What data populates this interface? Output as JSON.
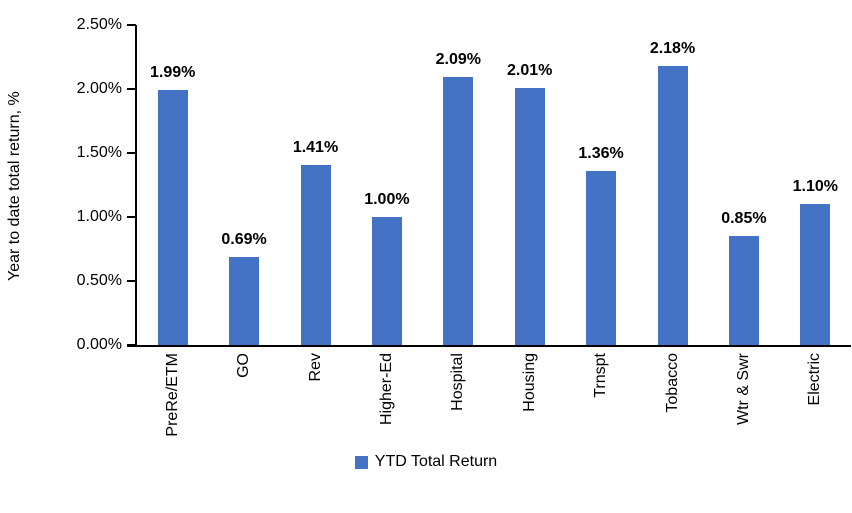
{
  "chart_data": {
    "type": "bar",
    "categories": [
      "PreRe/ETM",
      "GO",
      "Rev",
      "Higher-Ed",
      "Hospital",
      "Housing",
      "Trnspt",
      "Tobacco",
      "Wtr & Swr",
      "Electric"
    ],
    "values": [
      1.99,
      0.69,
      1.41,
      1.0,
      2.09,
      2.01,
      1.36,
      2.18,
      0.85,
      1.1
    ],
    "data_labels": [
      "1.99%",
      "0.69%",
      "1.41%",
      "1.00%",
      "2.09%",
      "2.01%",
      "1.36%",
      "2.18%",
      "0.85%",
      "1.10%"
    ],
    "ylabel": "Year to date total return, %",
    "y_ticks": [
      "0.00%",
      "0.50%",
      "1.00%",
      "1.50%",
      "2.00%",
      "2.50%"
    ],
    "ylim": [
      0,
      2.5
    ],
    "grid": false,
    "legend": [
      "YTD Total Return"
    ],
    "legend_position": "bottom",
    "bar_color": "#4472C4",
    "axis_color": "#000000",
    "text_color": "#000000"
  }
}
